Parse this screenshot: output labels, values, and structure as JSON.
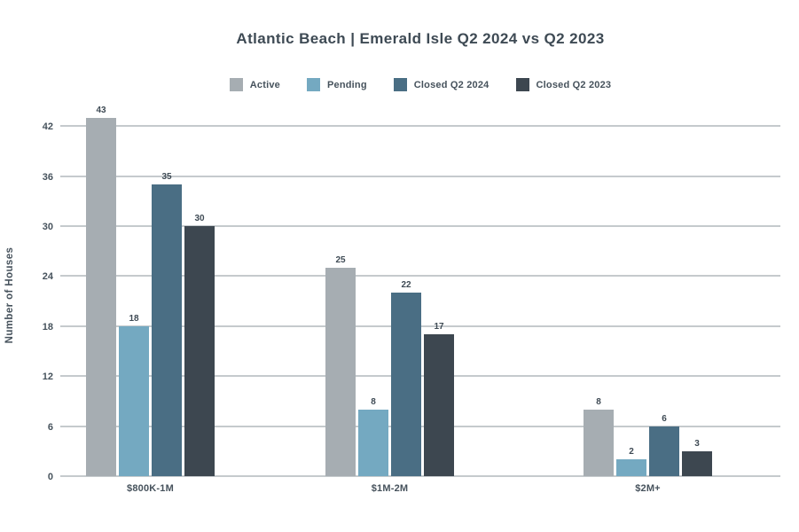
{
  "title": "Atlantic Beach | Emerald Isle Q2 2024 vs Q2 2023",
  "colors": {
    "title_text": "#3e4a54",
    "axis_text": "#46525c",
    "gridline": "#c5cacd",
    "background": "#ffffff",
    "active": "#a6adb2",
    "pending": "#74a9c1",
    "closed_q2_2024": "#4a6e84",
    "closed_q2_2023": "#3d4750"
  },
  "chart_data": {
    "type": "bar",
    "title": "Atlantic Beach | Emerald Isle Q2 2024 vs Q2 2023",
    "xlabel": "",
    "ylabel": "Number of Houses",
    "categories": [
      "$800K-1M",
      "$1M-2M",
      "$2M+"
    ],
    "series": [
      {
        "name": "Active",
        "color": "#a6adb2",
        "values": [
          43,
          25,
          8
        ]
      },
      {
        "name": "Pending",
        "color": "#74a9c1",
        "values": [
          18,
          8,
          2
        ]
      },
      {
        "name": "Closed Q2 2024",
        "color": "#4a6e84",
        "values": [
          35,
          22,
          6
        ]
      },
      {
        "name": "Closed Q2 2023",
        "color": "#3d4750",
        "values": [
          30,
          17,
          3
        ]
      }
    ],
    "ylim": [
      0,
      43.5
    ],
    "yticks": [
      0,
      6,
      12,
      18,
      24,
      30,
      36,
      42
    ],
    "grid": true,
    "legend_position": "top",
    "bar_value_labels": true
  }
}
